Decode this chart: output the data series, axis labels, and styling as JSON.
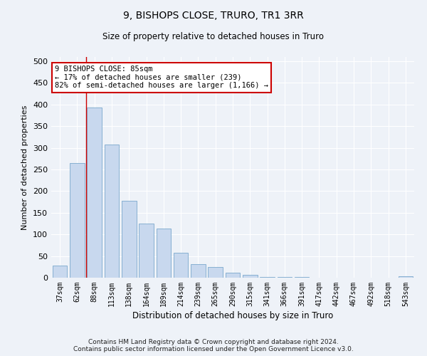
{
  "title": "9, BISHOPS CLOSE, TRURO, TR1 3RR",
  "subtitle": "Size of property relative to detached houses in Truro",
  "xlabel": "Distribution of detached houses by size in Truro",
  "ylabel": "Number of detached properties",
  "categories": [
    "37sqm",
    "62sqm",
    "88sqm",
    "113sqm",
    "138sqm",
    "164sqm",
    "189sqm",
    "214sqm",
    "239sqm",
    "265sqm",
    "290sqm",
    "315sqm",
    "341sqm",
    "366sqm",
    "391sqm",
    "417sqm",
    "442sqm",
    "467sqm",
    "492sqm",
    "518sqm",
    "543sqm"
  ],
  "values": [
    28,
    265,
    393,
    307,
    178,
    125,
    113,
    57,
    31,
    24,
    12,
    6,
    1,
    1,
    1,
    0,
    0,
    0,
    0,
    0,
    3
  ],
  "bar_color": "#c8d8ee",
  "bar_edge_color": "#7aa8cc",
  "vline_color": "#cc0000",
  "annotation_text": "9 BISHOPS CLOSE: 85sqm\n← 17% of detached houses are smaller (239)\n82% of semi-detached houses are larger (1,166) →",
  "annotation_box_color": "#ffffff",
  "annotation_box_edge": "#cc0000",
  "yticks": [
    0,
    50,
    100,
    150,
    200,
    250,
    300,
    350,
    400,
    450,
    500
  ],
  "ylim": [
    0,
    510
  ],
  "background_color": "#eef2f8",
  "grid_color": "#ffffff",
  "footer": "Contains HM Land Registry data © Crown copyright and database right 2024.\nContains public sector information licensed under the Open Government Licence v3.0."
}
